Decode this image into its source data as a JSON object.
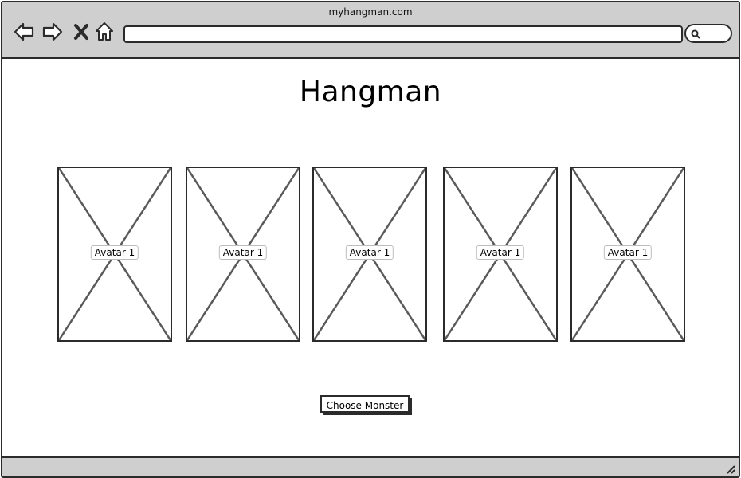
{
  "browser": {
    "site_title": "myhangman.com",
    "url_value": "",
    "search_value": "",
    "icons": [
      "back-icon",
      "forward-icon",
      "close-icon",
      "home-icon",
      "search-icon"
    ]
  },
  "page": {
    "title": "Hangman",
    "avatars": [
      {
        "label": "Avatar 1"
      },
      {
        "label": "Avatar 1"
      },
      {
        "label": "Avatar 1"
      },
      {
        "label": "Avatar 1"
      },
      {
        "label": "Avatar 1"
      }
    ],
    "choose_button_label": "Choose Monster"
  },
  "colors": {
    "chrome_gray": "#cfcfcf",
    "stroke": "#2b2b2b",
    "background": "#ffffff"
  }
}
